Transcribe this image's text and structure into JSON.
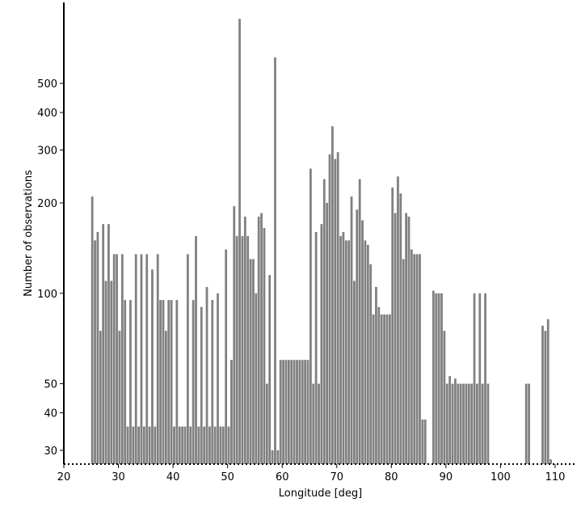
{
  "chart_data": {
    "type": "bar",
    "xlabel": "Longitude [deg]",
    "ylabel": "Number of observations",
    "y_scale": "log",
    "xlim": [
      20,
      114
    ],
    "ylim": [
      27,
      930
    ],
    "x_ticks": [
      20,
      30,
      40,
      50,
      60,
      70,
      80,
      90,
      100,
      110
    ],
    "y_ticks": [
      30,
      40,
      50,
      100,
      200,
      300,
      400,
      500
    ],
    "bar_color": "#808080",
    "bin_width": 0.5,
    "bins": [
      {
        "x": 25.0,
        "value": 210
      },
      {
        "x": 25.5,
        "value": 150
      },
      {
        "x": 26.0,
        "value": 160
      },
      {
        "x": 26.5,
        "value": 75
      },
      {
        "x": 27.0,
        "value": 170
      },
      {
        "x": 27.5,
        "value": 110
      },
      {
        "x": 28.0,
        "value": 170
      },
      {
        "x": 28.5,
        "value": 110
      },
      {
        "x": 29.0,
        "value": 135
      },
      {
        "x": 29.5,
        "value": 135
      },
      {
        "x": 30.0,
        "value": 75
      },
      {
        "x": 30.5,
        "value": 135
      },
      {
        "x": 31.0,
        "value": 95
      },
      {
        "x": 31.5,
        "value": 36
      },
      {
        "x": 32.0,
        "value": 95
      },
      {
        "x": 32.5,
        "value": 36
      },
      {
        "x": 33.0,
        "value": 135
      },
      {
        "x": 33.5,
        "value": 36
      },
      {
        "x": 34.0,
        "value": 135
      },
      {
        "x": 34.5,
        "value": 36
      },
      {
        "x": 35.0,
        "value": 135
      },
      {
        "x": 35.5,
        "value": 36
      },
      {
        "x": 36.0,
        "value": 120
      },
      {
        "x": 36.5,
        "value": 36
      },
      {
        "x": 37.0,
        "value": 135
      },
      {
        "x": 37.5,
        "value": 95
      },
      {
        "x": 38.0,
        "value": 95
      },
      {
        "x": 38.5,
        "value": 75
      },
      {
        "x": 39.0,
        "value": 95
      },
      {
        "x": 39.5,
        "value": 95
      },
      {
        "x": 40.0,
        "value": 36
      },
      {
        "x": 40.5,
        "value": 95
      },
      {
        "x": 41.0,
        "value": 36
      },
      {
        "x": 41.5,
        "value": 36
      },
      {
        "x": 42.0,
        "value": 36
      },
      {
        "x": 42.5,
        "value": 135
      },
      {
        "x": 43.0,
        "value": 36
      },
      {
        "x": 43.5,
        "value": 95
      },
      {
        "x": 44.0,
        "value": 155
      },
      {
        "x": 44.5,
        "value": 36
      },
      {
        "x": 45.0,
        "value": 90
      },
      {
        "x": 45.5,
        "value": 36
      },
      {
        "x": 46.0,
        "value": 105
      },
      {
        "x": 46.5,
        "value": 36
      },
      {
        "x": 47.0,
        "value": 95
      },
      {
        "x": 47.5,
        "value": 36
      },
      {
        "x": 48.0,
        "value": 100
      },
      {
        "x": 48.5,
        "value": 36
      },
      {
        "x": 49.0,
        "value": 36
      },
      {
        "x": 49.5,
        "value": 140
      },
      {
        "x": 50.0,
        "value": 36
      },
      {
        "x": 50.5,
        "value": 60
      },
      {
        "x": 51.0,
        "value": 195
      },
      {
        "x": 51.5,
        "value": 155
      },
      {
        "x": 52.0,
        "value": 820
      },
      {
        "x": 52.5,
        "value": 155
      },
      {
        "x": 53.0,
        "value": 180
      },
      {
        "x": 53.5,
        "value": 155
      },
      {
        "x": 54.0,
        "value": 130
      },
      {
        "x": 54.5,
        "value": 130
      },
      {
        "x": 55.0,
        "value": 100
      },
      {
        "x": 55.5,
        "value": 180
      },
      {
        "x": 56.0,
        "value": 185
      },
      {
        "x": 56.5,
        "value": 165
      },
      {
        "x": 57.0,
        "value": 50
      },
      {
        "x": 57.5,
        "value": 115
      },
      {
        "x": 58.0,
        "value": 30
      },
      {
        "x": 58.5,
        "value": 610
      },
      {
        "x": 59.0,
        "value": 30
      },
      {
        "x": 59.5,
        "value": 60
      },
      {
        "x": 60.0,
        "value": 60
      },
      {
        "x": 60.5,
        "value": 60
      },
      {
        "x": 61.0,
        "value": 60
      },
      {
        "x": 61.5,
        "value": 60
      },
      {
        "x": 62.0,
        "value": 60
      },
      {
        "x": 62.5,
        "value": 60
      },
      {
        "x": 63.0,
        "value": 60
      },
      {
        "x": 63.5,
        "value": 60
      },
      {
        "x": 64.0,
        "value": 60
      },
      {
        "x": 64.5,
        "value": 60
      },
      {
        "x": 65.0,
        "value": 260
      },
      {
        "x": 65.5,
        "value": 50
      },
      {
        "x": 66.0,
        "value": 160
      },
      {
        "x": 66.5,
        "value": 50
      },
      {
        "x": 67.0,
        "value": 170
      },
      {
        "x": 67.5,
        "value": 240
      },
      {
        "x": 68.0,
        "value": 200
      },
      {
        "x": 68.5,
        "value": 290
      },
      {
        "x": 69.0,
        "value": 360
      },
      {
        "x": 69.5,
        "value": 280
      },
      {
        "x": 70.0,
        "value": 295
      },
      {
        "x": 70.5,
        "value": 155
      },
      {
        "x": 71.0,
        "value": 160
      },
      {
        "x": 71.5,
        "value": 150
      },
      {
        "x": 72.0,
        "value": 150
      },
      {
        "x": 72.5,
        "value": 210
      },
      {
        "x": 73.0,
        "value": 110
      },
      {
        "x": 73.5,
        "value": 190
      },
      {
        "x": 74.0,
        "value": 240
      },
      {
        "x": 74.5,
        "value": 175
      },
      {
        "x": 75.0,
        "value": 150
      },
      {
        "x": 75.5,
        "value": 145
      },
      {
        "x": 76.0,
        "value": 125
      },
      {
        "x": 76.5,
        "value": 85
      },
      {
        "x": 77.0,
        "value": 105
      },
      {
        "x": 77.5,
        "value": 90
      },
      {
        "x": 78.0,
        "value": 85
      },
      {
        "x": 78.5,
        "value": 85
      },
      {
        "x": 79.0,
        "value": 85
      },
      {
        "x": 79.5,
        "value": 85
      },
      {
        "x": 80.0,
        "value": 225
      },
      {
        "x": 80.5,
        "value": 185
      },
      {
        "x": 81.0,
        "value": 245
      },
      {
        "x": 81.5,
        "value": 215
      },
      {
        "x": 82.0,
        "value": 130
      },
      {
        "x": 82.5,
        "value": 185
      },
      {
        "x": 83.0,
        "value": 180
      },
      {
        "x": 83.5,
        "value": 140
      },
      {
        "x": 84.0,
        "value": 135
      },
      {
        "x": 84.5,
        "value": 135
      },
      {
        "x": 85.0,
        "value": 135
      },
      {
        "x": 85.5,
        "value": 38
      },
      {
        "x": 86.0,
        "value": 38
      },
      {
        "x": 87.5,
        "value": 102
      },
      {
        "x": 88.0,
        "value": 100
      },
      {
        "x": 88.5,
        "value": 100
      },
      {
        "x": 89.0,
        "value": 100
      },
      {
        "x": 89.5,
        "value": 75
      },
      {
        "x": 90.0,
        "value": 50
      },
      {
        "x": 90.5,
        "value": 53
      },
      {
        "x": 91.0,
        "value": 50
      },
      {
        "x": 91.5,
        "value": 52
      },
      {
        "x": 92.0,
        "value": 50
      },
      {
        "x": 92.5,
        "value": 50
      },
      {
        "x": 93.0,
        "value": 50
      },
      {
        "x": 93.5,
        "value": 50
      },
      {
        "x": 94.0,
        "value": 50
      },
      {
        "x": 94.5,
        "value": 50
      },
      {
        "x": 95.0,
        "value": 100
      },
      {
        "x": 95.5,
        "value": 50
      },
      {
        "x": 96.0,
        "value": 100
      },
      {
        "x": 96.5,
        "value": 50
      },
      {
        "x": 97.0,
        "value": 100
      },
      {
        "x": 97.5,
        "value": 50
      },
      {
        "x": 104.5,
        "value": 50
      },
      {
        "x": 105.0,
        "value": 50
      },
      {
        "x": 107.5,
        "value": 78
      },
      {
        "x": 108.0,
        "value": 75
      },
      {
        "x": 108.5,
        "value": 82
      },
      {
        "x": 109.0,
        "value": 28
      }
    ]
  }
}
